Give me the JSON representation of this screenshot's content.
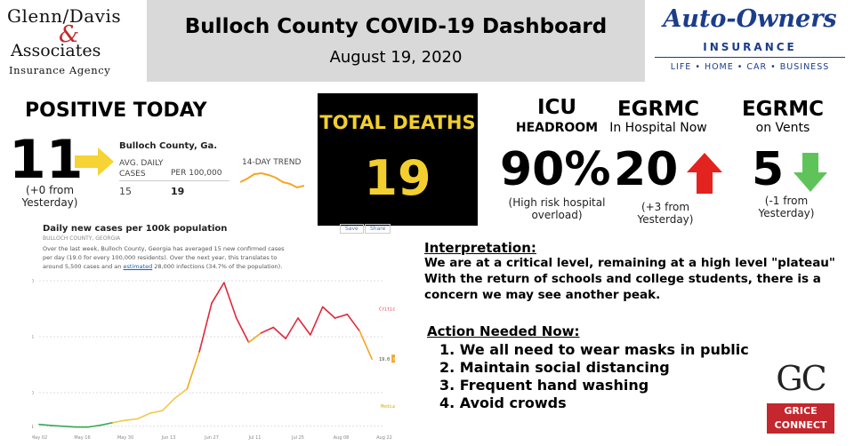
{
  "header": {
    "title": "Bulloch County COVID-19 Dashboard",
    "date": "August 19, 2020"
  },
  "logos": {
    "glenn_davis": {
      "line1": "Glenn/Davis",
      "amp": "&",
      "line2": "Associates",
      "line3": "Insurance Agency"
    },
    "auto_owners": {
      "name": "Auto-Owners",
      "sub": "INSURANCE",
      "tagline": "LIFE • HOME • CAR • BUSINESS"
    },
    "grice": {
      "mark": "GC",
      "line1": "GRICE",
      "line2": "CONNECT"
    }
  },
  "positive_today": {
    "heading": "POSITIVE TODAY",
    "value": "11",
    "change": "(+0 from Yesterday)",
    "mini_table": {
      "title": "Bulloch County, Ga.",
      "col1": "AVG. DAILY CASES",
      "col2": "PER 100,000",
      "col3": "14-DAY TREND",
      "val1": "15",
      "val2": "19"
    }
  },
  "total_deaths": {
    "heading": "TOTAL DEATHS",
    "value": "19"
  },
  "icu": {
    "heading": "ICU",
    "subheading": "HEADROOM",
    "value": "90%",
    "note": "(High risk hospital overload)"
  },
  "egrmc_hospital": {
    "heading": "EGRMC",
    "subheading": "In Hospital Now",
    "value": "20",
    "change": "(+3 from Yesterday)",
    "trend": "up"
  },
  "egrmc_vents": {
    "heading": "EGRMC",
    "subheading": "on Vents",
    "value": "5",
    "change": "(-1 from Yesterday)",
    "trend": "down"
  },
  "daily_chart": {
    "title": "Daily new cases per 100k population",
    "subtitle": "BULLOCH COUNTY, GEORGIA",
    "desc_a": "Over the last week, Bulloch County, Georgia has averaged 15 new confirmed cases per day (19.0 for every 100,000 residents). Over the next year, this translates to around 5,500 cases and an ",
    "desc_link": "estimated",
    "desc_b": " 28,000 infections (34.7% of the population).",
    "save_label": "Save",
    "share_label": "Share",
    "current_value": "19.0",
    "tag_high": "High",
    "label_critical": "Critical",
    "label_medium": "Medium"
  },
  "chart_data": {
    "type": "line",
    "title": "Daily new cases per 100k population",
    "x_labels": [
      "May 02",
      "May 16",
      "May 30",
      "Jun 13",
      "Jun 27",
      "Jul 11",
      "Jul 25",
      "Aug 08",
      "Aug 22"
    ],
    "y_ticks": [
      1,
      10,
      25,
      40
    ],
    "ylim": [
      0,
      40
    ],
    "series": [
      {
        "x": [
          "May 02",
          "May 06",
          "May 10",
          "May 14",
          "May 18",
          "May 22",
          "May 26",
          "May 30",
          "Jun 03",
          "Jun 07",
          "Jun 11",
          "Jun 15",
          "Jun 19",
          "Jun 23",
          "Jun 27",
          "Jul 01",
          "Jul 05",
          "Jul 09",
          "Jul 13",
          "Jul 17",
          "Jul 21",
          "Jul 25",
          "Jul 29",
          "Aug 02",
          "Aug 06",
          "Aug 10",
          "Aug 14",
          "Aug 18"
        ],
        "values": [
          1.5,
          1.2,
          1.0,
          0.8,
          0.8,
          1.3,
          2.0,
          2.6,
          3.0,
          4.5,
          5.2,
          8.5,
          11.0,
          21.0,
          34.0,
          39.5,
          30.0,
          23.5,
          26.0,
          27.5,
          24.5,
          30.0,
          25.5,
          33.0,
          30.0,
          31.0,
          26.5,
          19.0
        ]
      }
    ],
    "risk_levels": [
      "Critical",
      "High",
      "Medium"
    ],
    "colors": {
      "critical": "#e0283b",
      "high": "#f5a623",
      "medium": "#f2c94c",
      "low": "#3aa757"
    },
    "grid": true
  }
}
